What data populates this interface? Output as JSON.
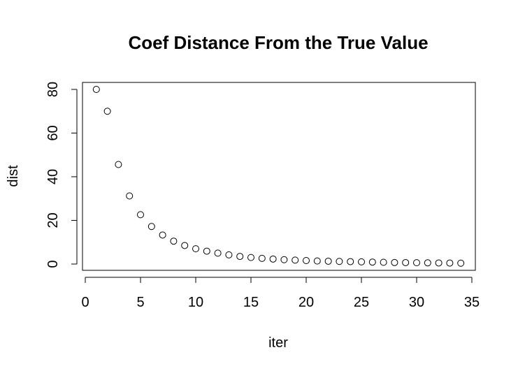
{
  "chart_data": {
    "type": "scatter",
    "title": "Coef Distance From the True Value",
    "xlabel": "iter",
    "ylabel": "dist",
    "xlim": [
      0,
      35
    ],
    "ylim": [
      0,
      80
    ],
    "x_ticks": [
      0,
      5,
      10,
      15,
      20,
      25,
      30,
      35
    ],
    "y_ticks": [
      0,
      20,
      40,
      60,
      80
    ],
    "grid": false,
    "marker": "open-circle",
    "x": [
      1,
      2,
      3,
      4,
      5,
      6,
      7,
      8,
      9,
      10,
      11,
      12,
      13,
      14,
      15,
      16,
      17,
      18,
      19,
      20,
      21,
      22,
      23,
      24,
      25,
      26,
      27,
      28,
      29,
      30,
      31,
      32,
      33,
      34
    ],
    "y": [
      80.0,
      70.0,
      45.6,
      31.2,
      22.6,
      17.2,
      13.3,
      10.5,
      8.5,
      7.0,
      5.9,
      5.0,
      4.2,
      3.5,
      3.0,
      2.6,
      2.3,
      2.0,
      1.8,
      1.6,
      1.4,
      1.3,
      1.2,
      1.1,
      1.0,
      0.9,
      0.8,
      0.7,
      0.65,
      0.6,
      0.55,
      0.5,
      0.45,
      0.4
    ]
  }
}
